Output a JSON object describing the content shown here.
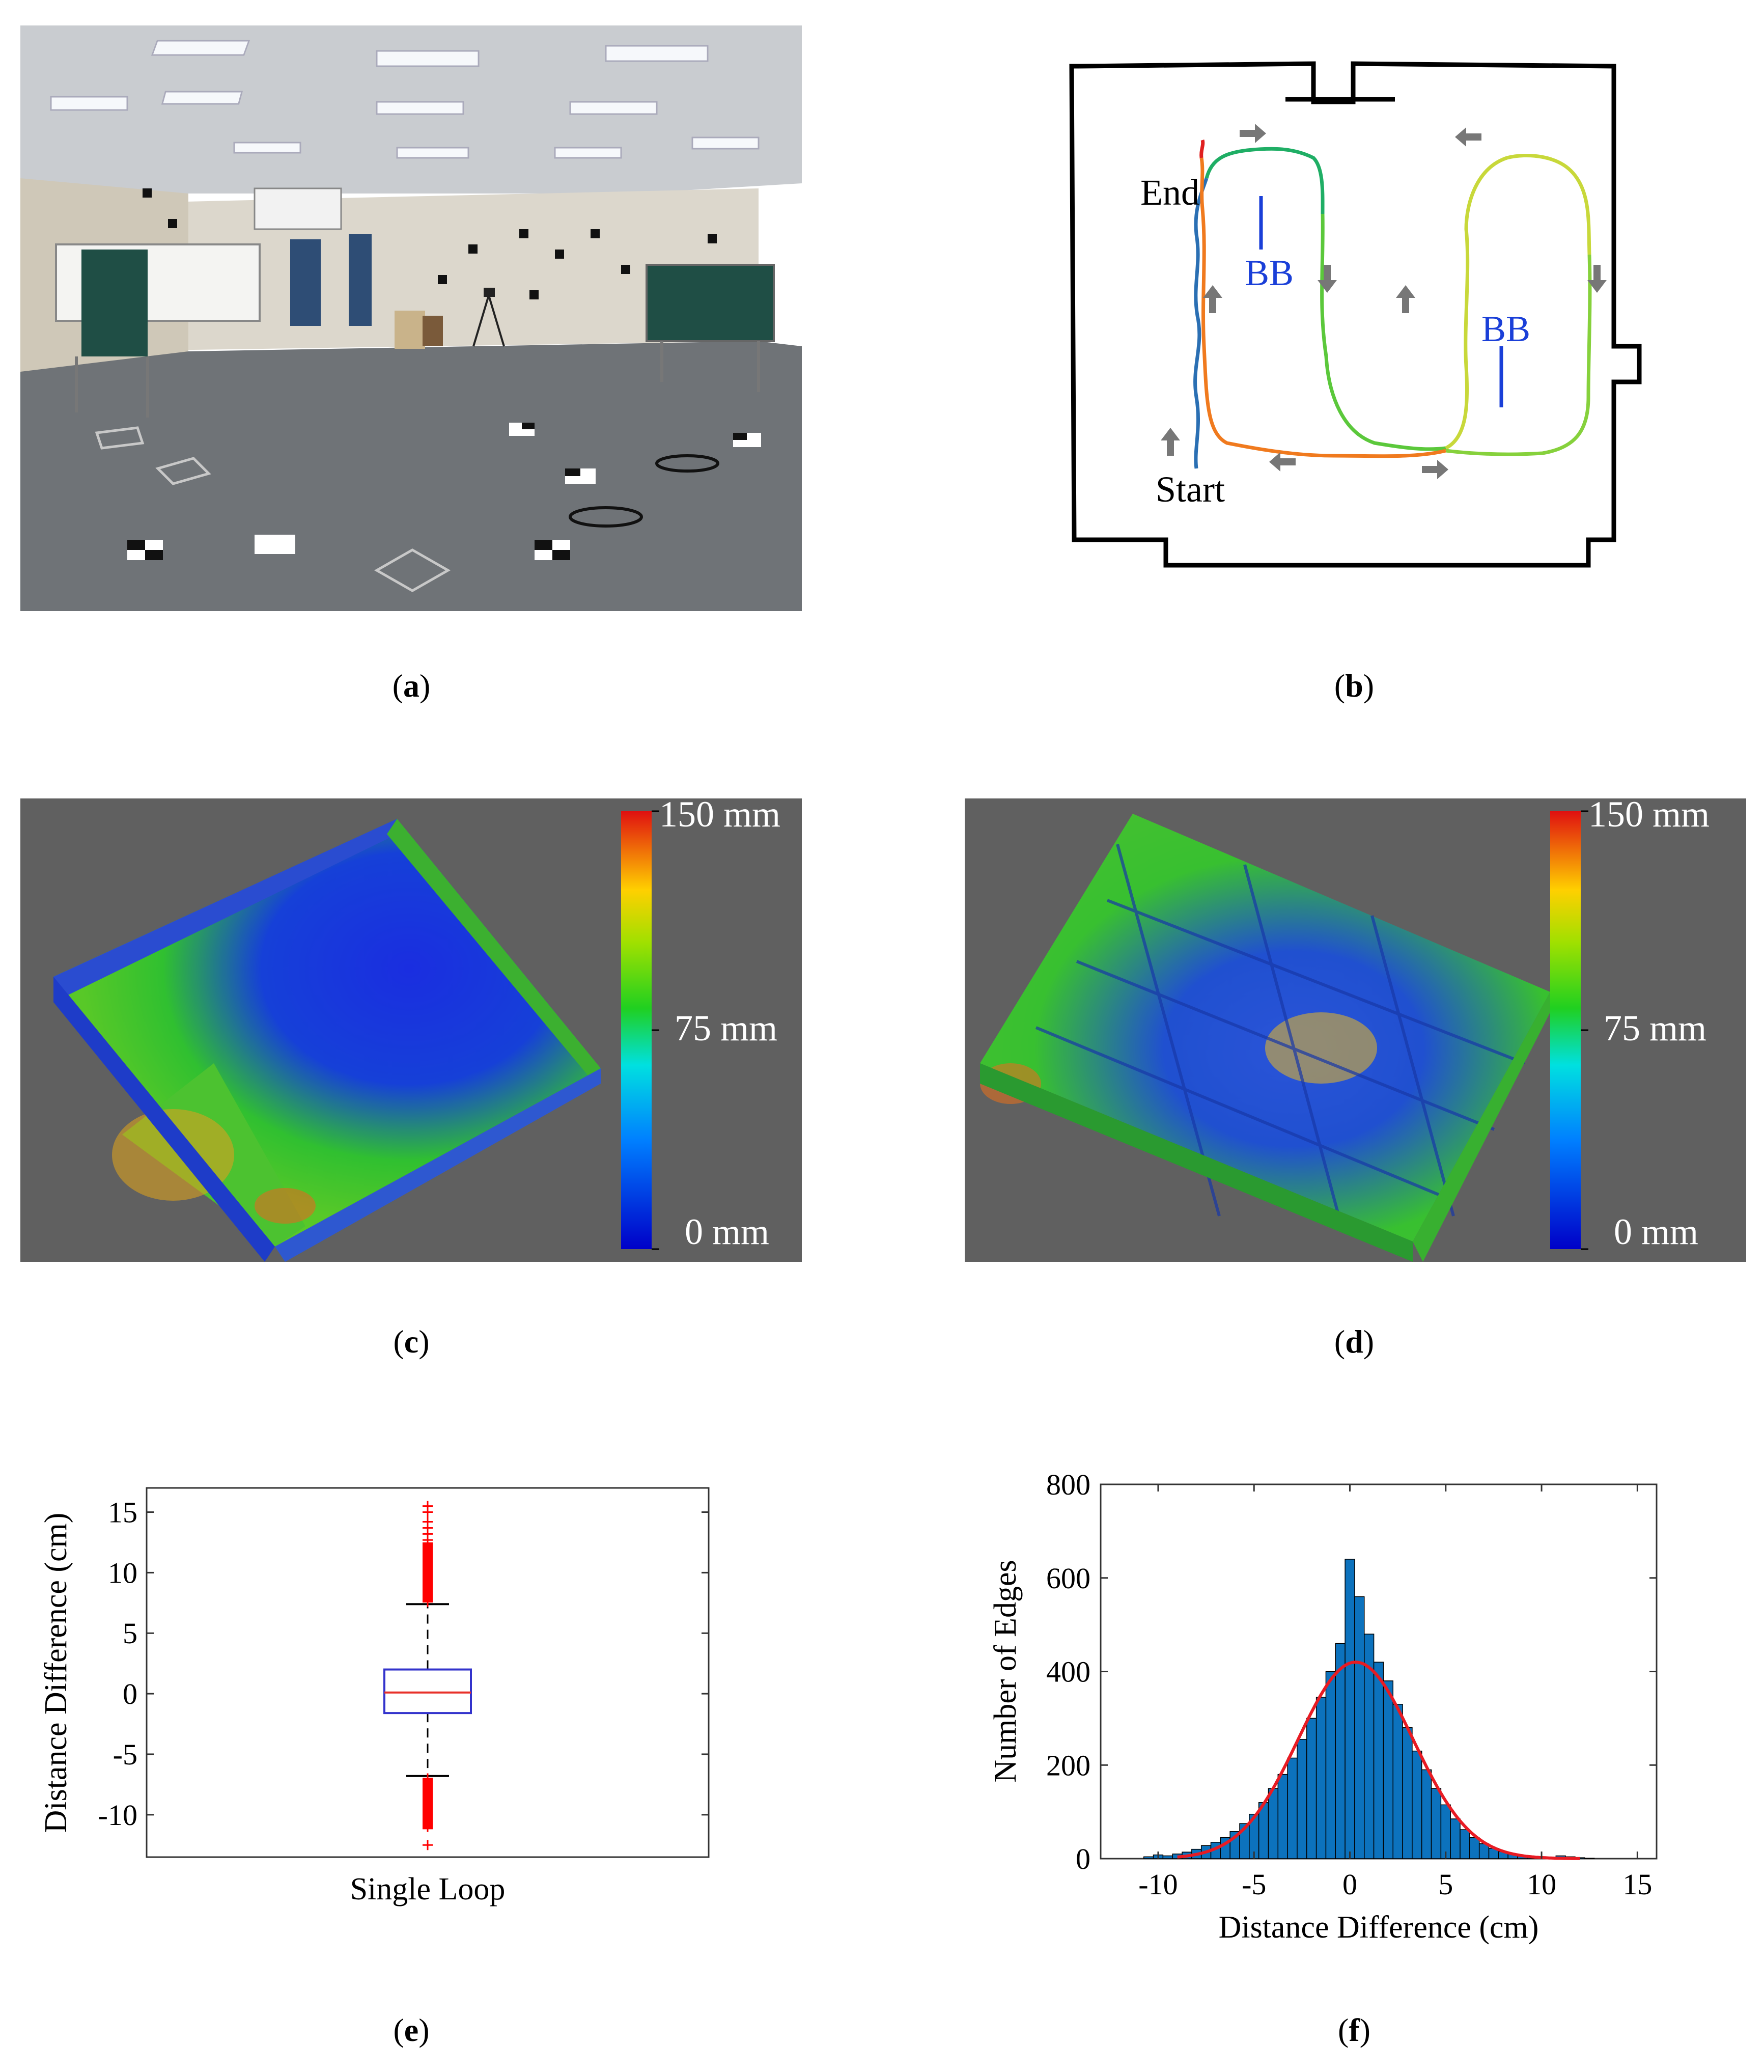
{
  "captions": {
    "a": "a",
    "b": "b",
    "c": "c",
    "d": "d",
    "e": "e",
    "f": "f"
  },
  "panel_b": {
    "labels": {
      "end": "End",
      "start": "Start",
      "bb": "BB"
    }
  },
  "panel_c": {
    "colorbar": {
      "top": "150 mm",
      "mid": "75 mm",
      "bottom": "0 mm"
    }
  },
  "panel_d": {
    "colorbar": {
      "top": "150 mm",
      "mid": "75 mm",
      "bottom": "0 mm"
    }
  },
  "colors": {
    "scan_bg": "#606060",
    "box_blue": "#3333cc",
    "median_red": "#e8312a",
    "outlier_red": "#ff0000",
    "hist_bar": "#0c72bd",
    "fit_curve": "#e81b23"
  },
  "chart_data": [
    {
      "type": "box",
      "panel": "e",
      "ylabel": "Distance Difference (cm)",
      "categories": [
        "Single Loop"
      ],
      "ylim": [
        -13.5,
        17
      ],
      "yticks": [
        15,
        10,
        5,
        0,
        -5,
        -10
      ],
      "stats": {
        "median": 0.1,
        "q1": -1.6,
        "q3": 2.0,
        "whisker_low": -6.8,
        "whisker_high": 7.4
      },
      "outliers_high": [
        7.6,
        8.0,
        8.4,
        8.8,
        9.2,
        9.6,
        10.0,
        10.4,
        10.8,
        11.2,
        11.6,
        12.0,
        12.3,
        12.7,
        13.2,
        13.7,
        14.2,
        15.0,
        15.5
      ],
      "outliers_low": [
        -7.0,
        -7.4,
        -7.8,
        -8.2,
        -8.6,
        -9.0,
        -9.4,
        -9.8,
        -10.2,
        -10.6,
        -11.0,
        -12.5
      ]
    },
    {
      "type": "bar",
      "panel": "f",
      "xlabel": "Distance Difference (cm)",
      "ylabel": "Number of Edges",
      "xlim": [
        -13,
        16
      ],
      "ylim": [
        0,
        800
      ],
      "xticks": [
        -10,
        -5,
        0,
        5,
        10,
        15
      ],
      "yticks": [
        0,
        200,
        400,
        600,
        800
      ],
      "bin_width": 0.5,
      "bins_x": [
        -10.5,
        -10.0,
        -9.5,
        -9.0,
        -8.5,
        -8.0,
        -7.5,
        -7.0,
        -6.5,
        -6.0,
        -5.5,
        -5.0,
        -4.5,
        -4.0,
        -3.5,
        -3.0,
        -2.5,
        -2.0,
        -1.5,
        -1.0,
        -0.5,
        0.0,
        0.5,
        1.0,
        1.5,
        2.0,
        2.5,
        3.0,
        3.5,
        4.0,
        4.5,
        5.0,
        5.5,
        6.0,
        6.5,
        7.0,
        7.5,
        8.0,
        8.5,
        9.0,
        9.5,
        10.0,
        10.5,
        11.0,
        11.5,
        12.0,
        12.5
      ],
      "values": [
        4,
        8,
        6,
        10,
        14,
        20,
        28,
        35,
        45,
        58,
        75,
        95,
        120,
        150,
        180,
        215,
        255,
        300,
        345,
        400,
        460,
        640,
        560,
        480,
        420,
        380,
        330,
        280,
        230,
        190,
        150,
        115,
        85,
        62,
        45,
        32,
        22,
        15,
        10,
        7,
        5,
        4,
        2,
        6,
        4,
        2,
        1
      ],
      "fit_curve": {
        "type": "normal",
        "mean": 0.3,
        "sd": 3.0,
        "peak": 420
      }
    }
  ]
}
